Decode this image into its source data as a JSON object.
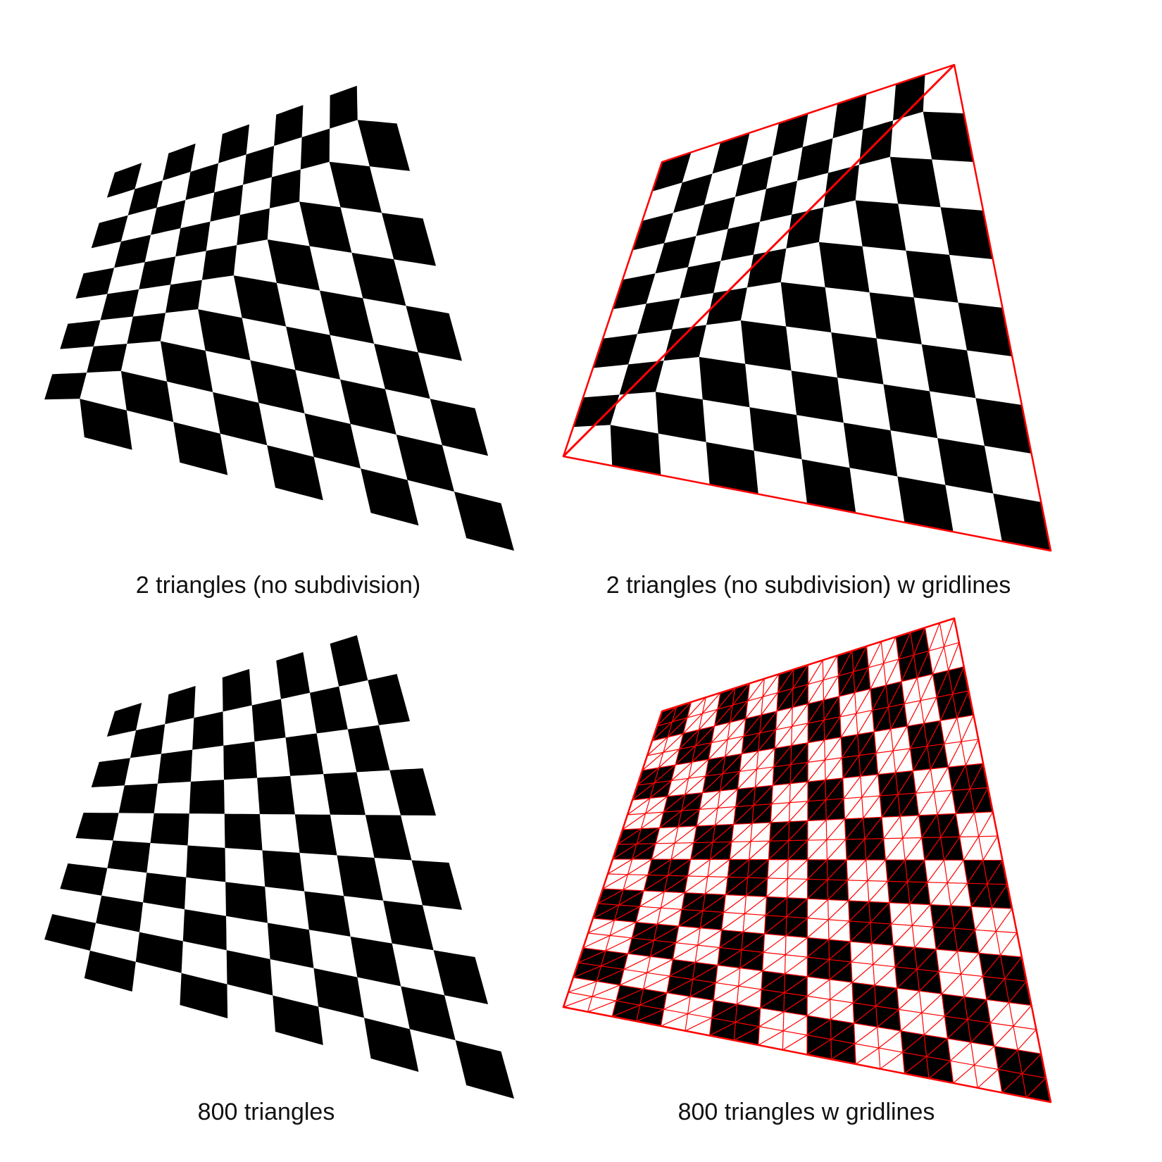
{
  "figure": {
    "background": "#ffffff",
    "square_color": "#000000",
    "gridline_color": "#ff0000",
    "board_size": 10,
    "panels": [
      {
        "id": "tl",
        "caption": "2 triangles (no subdivision)",
        "triangles": 2,
        "gridlines": false,
        "board_outline": false
      },
      {
        "id": "tr",
        "caption": "2 triangles (no subdivision) w gridlines",
        "triangles": 2,
        "gridlines": true,
        "board_outline": true
      },
      {
        "id": "bl",
        "caption": "800 triangles",
        "triangles": 800,
        "gridlines": false,
        "board_outline": false
      },
      {
        "id": "br",
        "caption": "800 triangles w gridlines",
        "triangles": 800,
        "gridlines": true,
        "board_outline": true
      }
    ]
  }
}
